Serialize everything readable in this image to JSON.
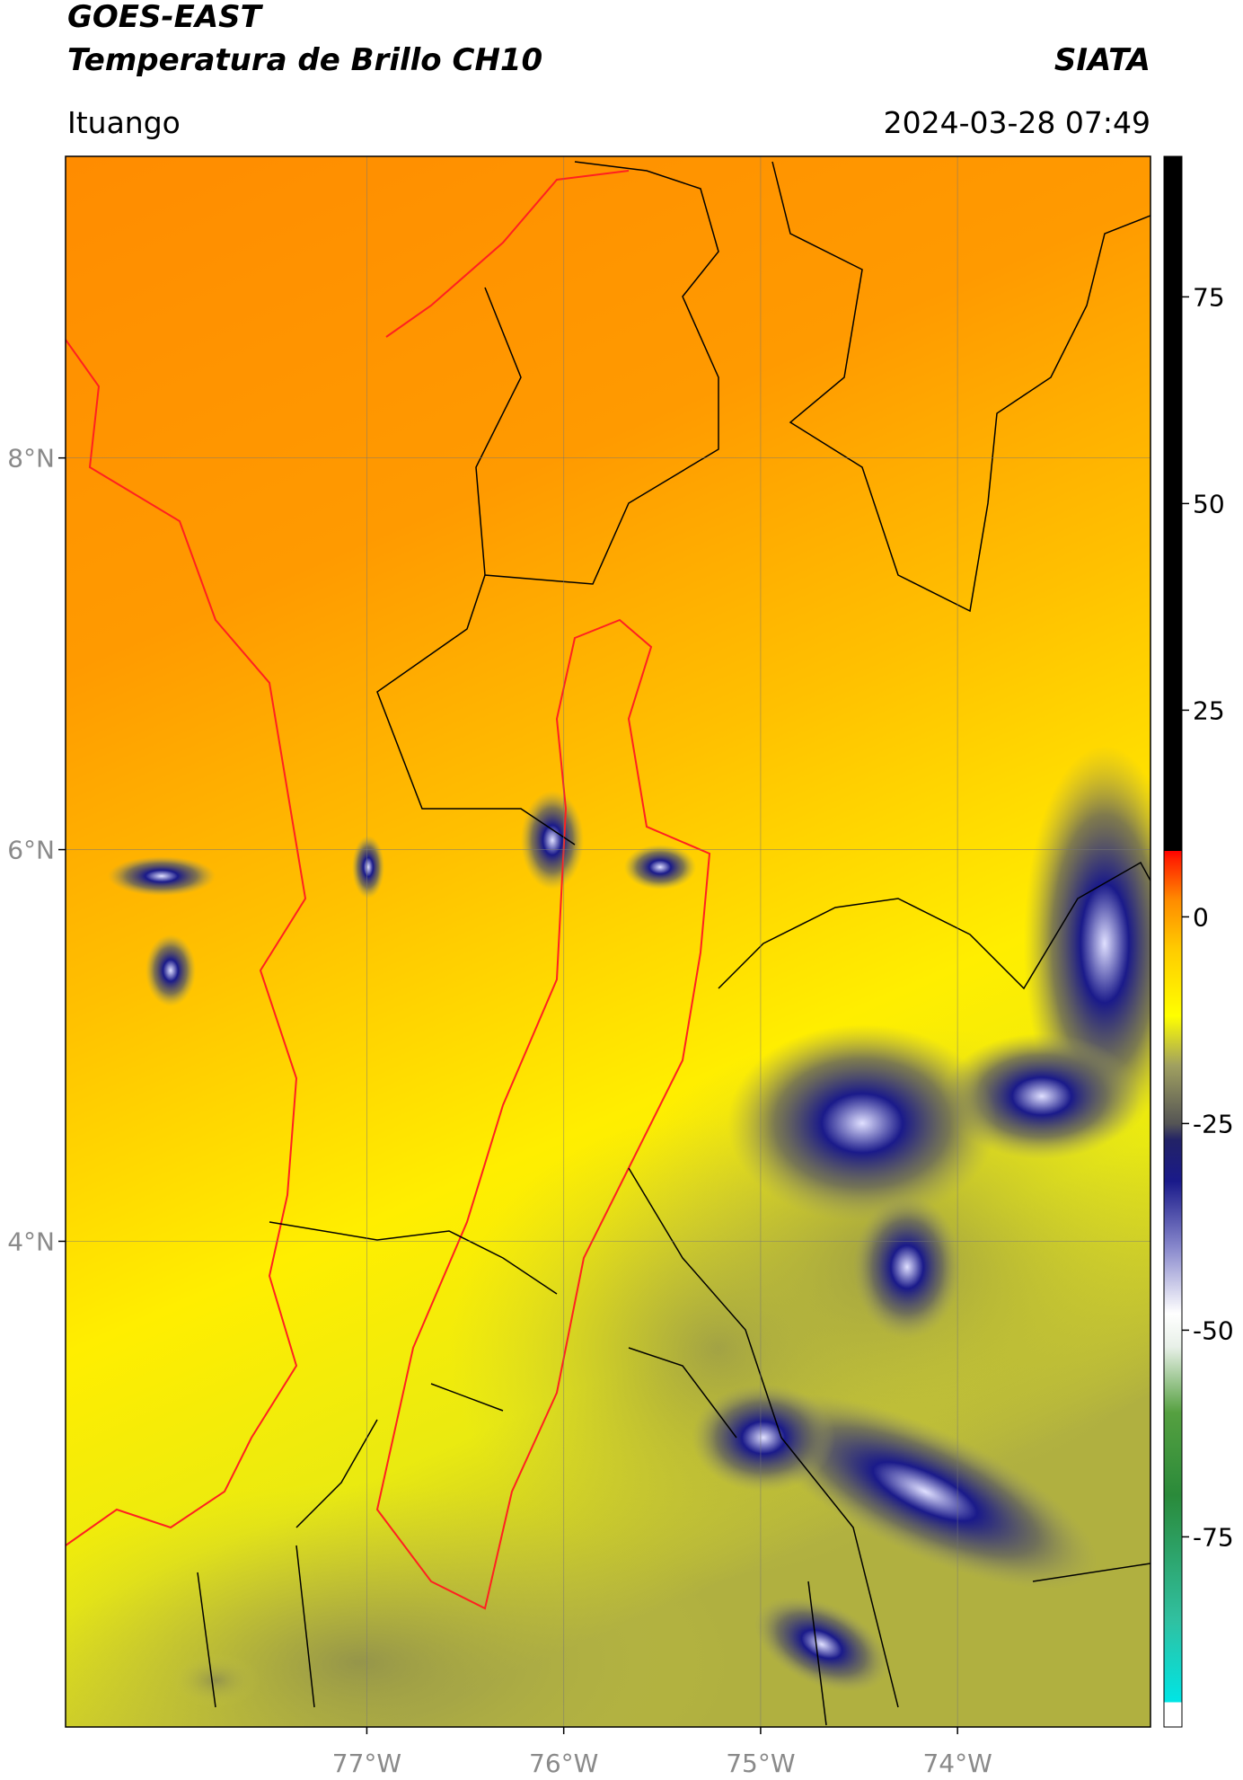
{
  "chart_data": {
    "type": "map",
    "title": "GOES-EAST",
    "subtitle": "Temperatura de Brillo CH10",
    "source": "SIATA",
    "location": "Ituango",
    "timestamp": "2024-03-28 07:49",
    "xlim": [
      -78.53,
      -73.02
    ],
    "ylim": [
      1.52,
      9.54
    ],
    "xticks": [
      {
        "value": -77,
        "label": "77°W"
      },
      {
        "value": -76,
        "label": "76°W"
      },
      {
        "value": -75,
        "label": "75°W"
      },
      {
        "value": -74,
        "label": "74°W"
      }
    ],
    "yticks": [
      {
        "value": 4,
        "label": "4°N"
      },
      {
        "value": 6,
        "label": "6°N"
      },
      {
        "value": 8,
        "label": "8°N"
      }
    ],
    "grid": true,
    "colorbar": {
      "lim": [
        -98,
        92
      ],
      "ticks": [
        -75,
        -50,
        -25,
        0,
        25,
        50,
        75
      ],
      "stops": [
        {
          "value": -98,
          "color": "#ffffff"
        },
        {
          "value": -95,
          "color": "#ffffff"
        },
        {
          "value": -95,
          "color": "#00e5e5"
        },
        {
          "value": -85,
          "color": "#30c0a0"
        },
        {
          "value": -70,
          "color": "#2a8a3a"
        },
        {
          "value": -60,
          "color": "#55a040"
        },
        {
          "value": -52,
          "color": "#e8f0e8"
        },
        {
          "value": -48,
          "color": "#ffffff"
        },
        {
          "value": -40,
          "color": "#8888cc"
        },
        {
          "value": -32,
          "color": "#1a1a8a"
        },
        {
          "value": -27,
          "color": "#222266"
        },
        {
          "value": -25,
          "color": "#555555"
        },
        {
          "value": -18,
          "color": "#a0a060"
        },
        {
          "value": -12,
          "color": "#ffff00"
        },
        {
          "value": -4,
          "color": "#ffcc00"
        },
        {
          "value": 2,
          "color": "#ff8c00"
        },
        {
          "value": 7,
          "color": "#ff2000"
        },
        {
          "value": 8,
          "color": "#ff0000"
        },
        {
          "value": 8,
          "color": "#000000"
        },
        {
          "value": 92,
          "color": "#000000"
        }
      ]
    }
  }
}
